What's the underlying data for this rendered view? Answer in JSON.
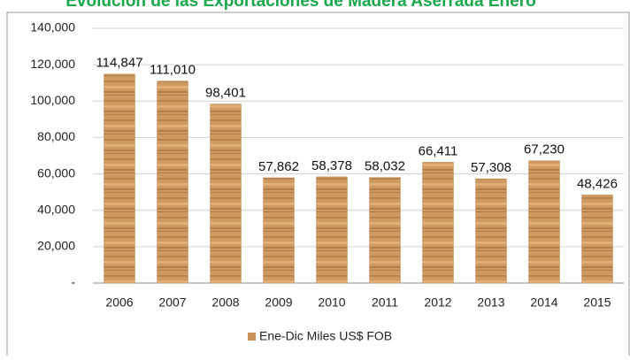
{
  "chart_data": {
    "type": "bar",
    "title": "Evolución de las Exportaciones de Madera Aserrada Enero",
    "categories": [
      "2006",
      "2007",
      "2008",
      "2009",
      "2010",
      "2011",
      "2012",
      "2013",
      "2014",
      "2015"
    ],
    "series": [
      {
        "name": "Ene-Dic Miles US$ FOB",
        "color": "#c8915a",
        "values": [
          114847,
          111010,
          98401,
          57862,
          58378,
          58032,
          66411,
          57308,
          67230,
          48426
        ],
        "value_labels": [
          "114,847",
          "111,010",
          "98,401",
          "57,862",
          "58,378",
          "58,032",
          "66,411",
          "57,308",
          "67,230",
          "48,426"
        ]
      }
    ],
    "ylim": [
      0,
      140000
    ],
    "yticks": [
      {
        "value": 0,
        "label": "-"
      },
      {
        "value": 20000,
        "label": "20,000"
      },
      {
        "value": 40000,
        "label": "40,000"
      },
      {
        "value": 60000,
        "label": "60,000"
      },
      {
        "value": 80000,
        "label": "80,000"
      },
      {
        "value": 100000,
        "label": "100,000"
      },
      {
        "value": 120000,
        "label": "120,000"
      },
      {
        "value": 140000,
        "label": "140,000"
      }
    ],
    "grid": true,
    "legend": "bottom"
  }
}
